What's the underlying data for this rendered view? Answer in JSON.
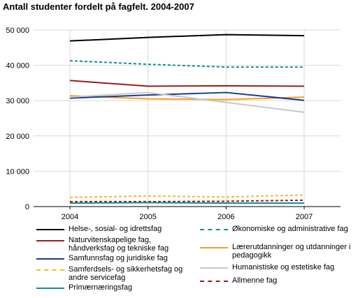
{
  "title": "Antall studenter fordelt på fagfelt. 2004-2007",
  "chart_data": {
    "type": "line",
    "title": "Antall studenter fordelt på fagfelt. 2004-2007",
    "xlabel": "",
    "ylabel": "",
    "categories": [
      "2004",
      "2005",
      "2006",
      "2007"
    ],
    "ylim": [
      0,
      50000
    ],
    "yticks": [
      0,
      10000,
      20000,
      30000,
      40000,
      50000
    ],
    "ytick_labels": [
      "0",
      "10 000",
      "20 000",
      "30 000",
      "40 000",
      "50 000"
    ],
    "grid": true,
    "legend_position": "bottom",
    "series": [
      {
        "name": "Helse-, sosial- og idrettsfag",
        "color": "#000000",
        "dash": "solid",
        "values": [
          46900,
          47900,
          48700,
          48400
        ]
      },
      {
        "name": "Økonomiske og administrative fag",
        "color": "#0e8f96",
        "dash": "dashed",
        "values": [
          41300,
          40300,
          39500,
          39500
        ]
      },
      {
        "name": "Naturvitenskapelige fag, håndverksfag og tekniske fag",
        "color": "#9b1c1c",
        "dash": "solid",
        "values": [
          35700,
          34100,
          34200,
          34100
        ]
      },
      {
        "name": "Lærerutdanninger og utdanninger i pedagogikk",
        "color": "#f0a030",
        "dash": "solid",
        "values": [
          31400,
          30500,
          30300,
          31000
        ]
      },
      {
        "name": "Samfunnsfag og juridiske fag",
        "color": "#1a3a8c",
        "dash": "solid",
        "values": [
          30700,
          31600,
          32300,
          30100
        ]
      },
      {
        "name": "Humanistiske og estetiske fag",
        "color": "#c8c8c8",
        "dash": "solid",
        "values": [
          31000,
          32300,
          29500,
          26700
        ]
      },
      {
        "name": "Samferdsels- og sikkerhetsfag og andre servicefag",
        "color": "#f0b93a",
        "dash": "dashed",
        "values": [
          2600,
          3000,
          2700,
          3300
        ]
      },
      {
        "name": "Allmenne fag",
        "color": "#9b1c1c",
        "dash": "dashed",
        "values": [
          1400,
          1400,
          1500,
          1800
        ]
      },
      {
        "name": "Primærnæringsfag",
        "color": "#0e8f96",
        "dash": "solid",
        "values": [
          1000,
          1100,
          1000,
          1000
        ]
      }
    ]
  }
}
